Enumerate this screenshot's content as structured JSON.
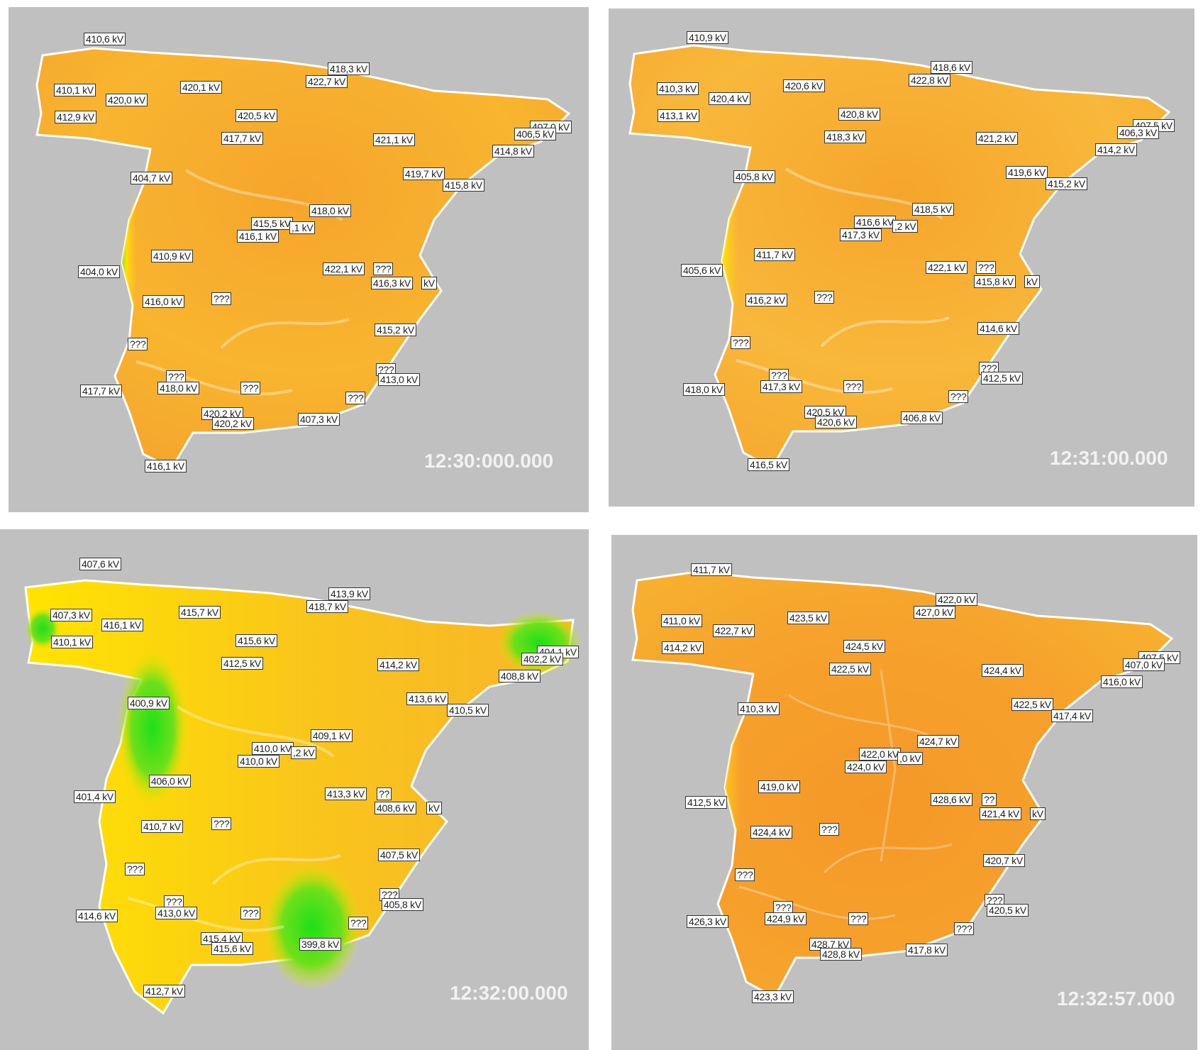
{
  "legend_unit": "kV",
  "colors": {
    "background": "#c0c0c0",
    "normal": "#f7b52f",
    "high": "#f59a2a",
    "low": "#25e01b",
    "mid": "#ffe600"
  },
  "panels": [
    {
      "timestamp": "12:30:000.000",
      "state": "normal",
      "labels": [
        "410,6 kV",
        "418,3 kV",
        "410,1 kV",
        "420,1 kV",
        "422,7 kV",
        "420,0 kV",
        "412,9 kV",
        "420,5 kV",
        "407,0 kV",
        "406,5 kV",
        "417,7 kV",
        "421,1 kV",
        "414,8 kV",
        "404,7 kV",
        "419,7 kV",
        "415,8 kV",
        "418,0 kV",
        "415,5 kV",
        ",1 kV",
        "416,1 kV",
        "410,9 kV",
        "404,0 kV",
        "422,1 kV",
        "???",
        "416,3 kV",
        " kV",
        "416,0 kV",
        "???",
        "415,2 kV",
        "???",
        "???",
        "413,0 kV",
        "???",
        "417,7 kV",
        "418,0 kV",
        "???",
        "???",
        "420,2 kV",
        "420,2 kV",
        "407,3 kV",
        "416,1 kV"
      ]
    },
    {
      "timestamp": "12:31:00.000",
      "state": "normal",
      "labels": [
        "410,9 kV",
        "418,6 kV",
        "410,3 kV",
        "420,6 kV",
        "422,8 kV",
        "420,4 kV",
        "413,1 kV",
        "420,8 kV",
        "407,5 kV",
        "406,3 kV",
        "418,3 kV",
        "421,2 kV",
        "414,2 kV",
        "405,8 kV",
        "419,6 kV",
        "415,2 kV",
        "418,5 kV",
        "416,6 kV",
        ",2 kV",
        "417,3 kV",
        "411,7 kV",
        "405,6 kV",
        "422,1 kV",
        "???",
        "415,8 kV",
        " kV",
        "416,2 kV",
        "???",
        "414,6 kV",
        "???",
        "???",
        "412,5 kV",
        "???",
        "418,0 kV",
        "417,3 kV",
        "???",
        "???",
        "420,5 kV",
        "420,6 kV",
        "406,8 kV",
        "416,5 kV"
      ]
    },
    {
      "timestamp": "12:32:00.000",
      "state": "low",
      "labels": [
        "407,6 kV",
        "413,9 kV",
        "407,3 kV",
        "415,7 kV",
        "418,7 kV",
        "416,1 kV",
        "410,1 kV",
        "415,6 kV",
        "404,1 kV",
        "402,2 kV",
        "412,5 kV",
        "414,2 kV",
        "408,8 kV",
        "400,9 kV",
        "413,6 kV",
        "410,5 kV",
        "409,1 kV",
        "410,0 kV",
        ",2 kV",
        "410,0 kV",
        "406,0 kV",
        "401,4 kV",
        "413,3 kV",
        "??",
        "408,6 kV",
        " kV",
        "410,7 kV",
        "???",
        "407,5 kV",
        "???",
        "???",
        "405,8 kV",
        "???",
        "414,6 kV",
        "413,0 kV",
        "???",
        "???",
        "415,4 kV",
        "415,6 kV",
        "399,8 kV",
        "412,7 kV"
      ]
    },
    {
      "timestamp": "12:32:57.000",
      "state": "high",
      "labels": [
        "411,7 kV",
        "422,0 kV",
        "411,0 kV",
        "423,5 kV",
        "427,0 kV",
        "422,7 kV",
        "414,2 kV",
        "424,5 kV",
        "407,5 kV",
        "407,0 kV",
        "422,5 kV",
        "424,4 kV",
        "416,0 kV",
        "410,3 kV",
        "422,5 kV",
        "417,4 kV",
        "424,7 kV",
        "422,0 kV",
        ",0 kV",
        "424,0 kV",
        "419,0 kV",
        "412,5 kV",
        "428,6 kV",
        "??",
        "421,4 kV",
        " kV",
        "424,4 kV",
        "???",
        "420,7 kV",
        "???",
        "???",
        "420,5 kV",
        "???",
        "426,3 kV",
        "424,9 kV",
        "???",
        "???",
        "428,7 kV",
        "428,8 kV",
        "417,8 kV",
        "423,3 kV"
      ]
    }
  ]
}
